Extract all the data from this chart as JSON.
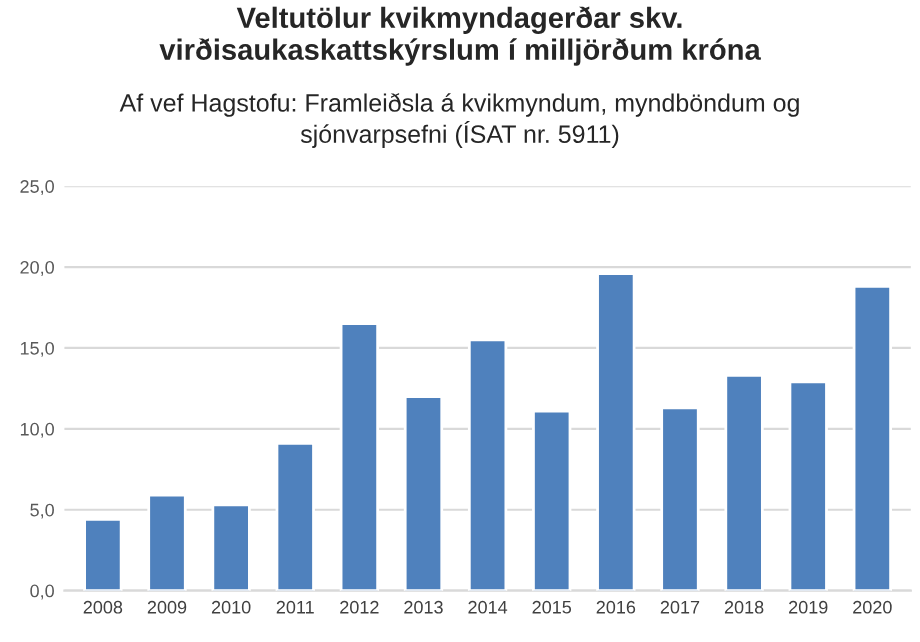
{
  "chart_data": {
    "type": "bar",
    "title": "Veltutölur kvikmyndagerðar skv.\nvirðisaukaskattskýrslum í milljörðum króna",
    "subtitle": "Af vef Hagstofu: Framleiðsla á kvikmyndum, myndböndum og\nsjónvarpsefni (ÍSAT nr. 5911)",
    "categories": [
      "2008",
      "2009",
      "2010",
      "2011",
      "2012",
      "2013",
      "2014",
      "2015",
      "2016",
      "2017",
      "2018",
      "2019",
      "2020"
    ],
    "values": [
      4.4,
      5.9,
      5.3,
      9.1,
      16.5,
      12.0,
      15.5,
      11.1,
      19.6,
      11.3,
      13.3,
      12.9,
      18.8
    ],
    "color": "#4f81bd",
    "ylim": [
      0,
      25
    ],
    "yticks": [
      {
        "value": 0,
        "label": "0,0"
      },
      {
        "value": 5,
        "label": "5,0"
      },
      {
        "value": 10,
        "label": "10,0"
      },
      {
        "value": 15,
        "label": "15,0"
      },
      {
        "value": 20,
        "label": "20,0"
      },
      {
        "value": 25,
        "label": "25,0"
      }
    ],
    "grid": "y",
    "legend": false
  }
}
